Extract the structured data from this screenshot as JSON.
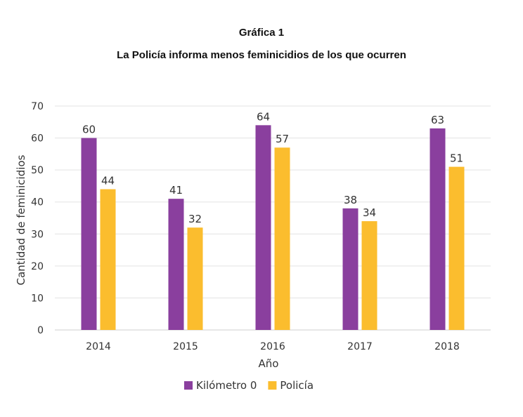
{
  "chart_data": {
    "type": "bar",
    "title": "Gráfica 1",
    "subtitle": "La Policía informa menos feminicidios de los que ocurren",
    "xlabel": "Año",
    "ylabel": "Cantidad de feminicidios",
    "categories": [
      "2014",
      "2015",
      "2016",
      "2017",
      "2018"
    ],
    "series": [
      {
        "name": "Kilómetro 0",
        "values": [
          60,
          41,
          64,
          38,
          63
        ],
        "color": "#8a3f9e"
      },
      {
        "name": "Policía",
        "values": [
          44,
          32,
          57,
          34,
          51
        ],
        "color": "#fbbd2e"
      }
    ],
    "ylim": [
      0,
      70
    ],
    "yticks": [
      0,
      10,
      20,
      30,
      40,
      50,
      60,
      70
    ],
    "grid": true,
    "legend_position": "bottom",
    "data_labels": true
  }
}
